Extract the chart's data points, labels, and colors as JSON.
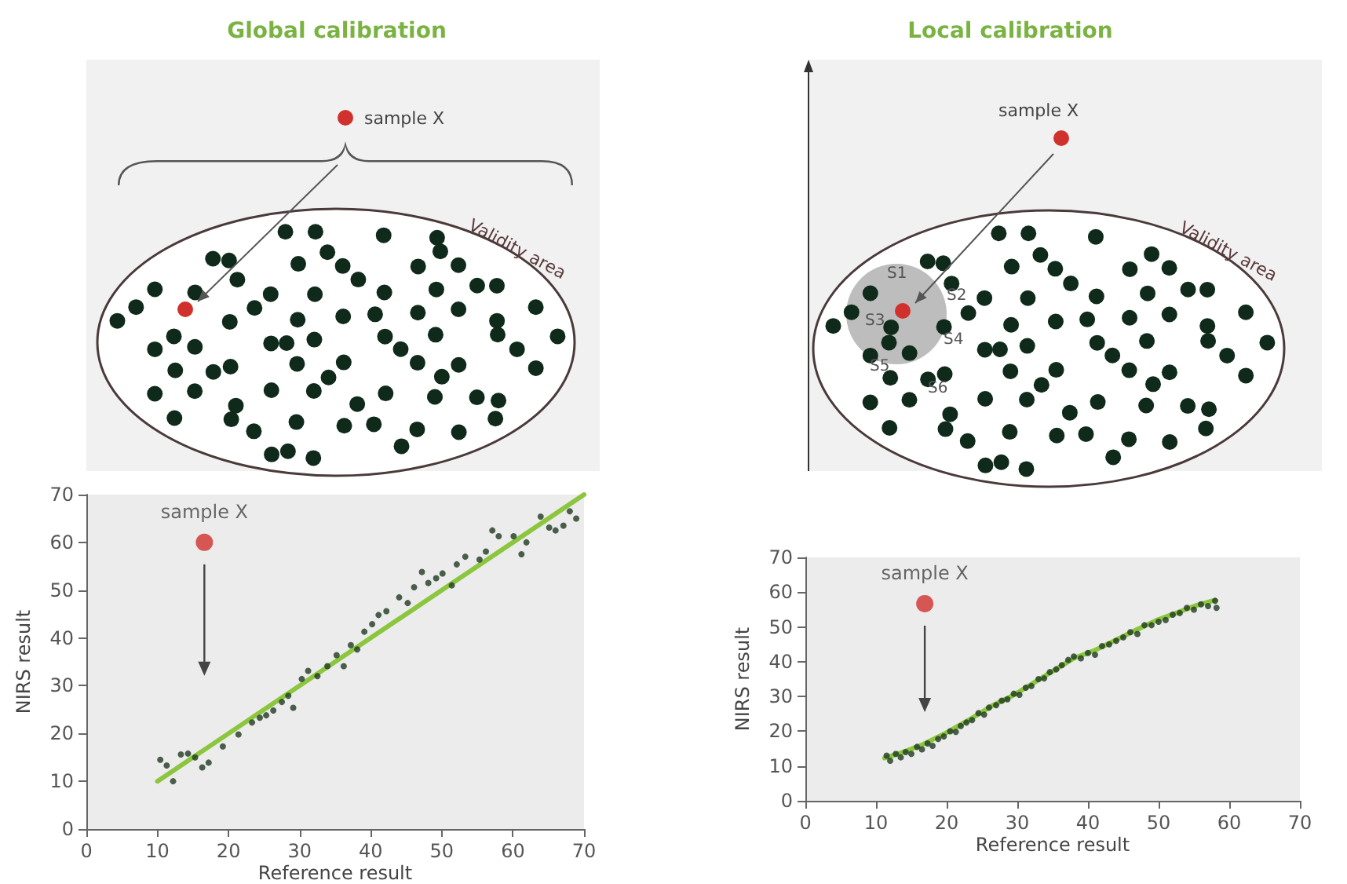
{
  "chart_data": [
    {
      "type": "scatter",
      "title": "Global calibration",
      "xlabel": "Reference result",
      "ylabel": "NIRS result",
      "annotations": [
        "sample X",
        "Validity area"
      ],
      "xlim": [
        0,
        70
      ],
      "ylim": [
        0,
        70
      ],
      "xticks": [
        0,
        10,
        20,
        30,
        40,
        50,
        60,
        70
      ],
      "yticks": [
        0,
        10,
        20,
        30,
        40,
        50,
        60,
        70
      ],
      "series": [
        {
          "marker": "circle",
          "color": "#1f3a22",
          "x": [
            10.4,
            11.3,
            12.2,
            13.3,
            14.3,
            15.3,
            16.3,
            17.2,
            19.2,
            21.4,
            23.3,
            24.4,
            25.3,
            26.3,
            27.5,
            28.4,
            29.1,
            30.3,
            31.2,
            32.5,
            33.9,
            35.2,
            36.2,
            37.2,
            38.1,
            39.1,
            40.2,
            41.1,
            42.2,
            44.0,
            45.2,
            46.1,
            47.2,
            48.1,
            49.2,
            50.1,
            51.4,
            52.1,
            53.3,
            55.3,
            56.2,
            57.1,
            58.0,
            60.1,
            61.2,
            61.9,
            63.9,
            65.1,
            66.0,
            67.1,
            68.0,
            68.9
          ],
          "values": [
            14.5,
            13.3,
            10.0,
            15.6,
            15.8,
            15.0,
            12.9,
            13.9,
            17.3,
            19.8,
            22.3,
            23.3,
            23.8,
            24.8,
            26.6,
            27.9,
            25.4,
            31.4,
            33.1,
            32.0,
            34.1,
            36.4,
            34.1,
            38.5,
            37.6,
            41.3,
            42.9,
            44.8,
            45.6,
            48.5,
            47.3,
            50.6,
            53.8,
            51.5,
            52.5,
            53.5,
            51.0,
            55.4,
            57.0,
            56.4,
            58.1,
            62.5,
            61.3,
            61.3,
            57.5,
            60.0,
            65.4,
            63.1,
            62.5,
            63.5,
            66.5,
            65.0
          ]
        },
        {
          "type": "line",
          "marker": "none",
          "color": "#8cc63f",
          "x": [
            10,
            70
          ],
          "values": [
            10,
            70
          ]
        },
        {
          "marker": "circle",
          "name": "sample X",
          "color": "#d0312d",
          "x": [
            16.6
          ],
          "values": [
            60
          ]
        }
      ]
    },
    {
      "type": "scatter",
      "title": "Local calibration",
      "xlabel": "Reference result",
      "ylabel": "NIRS result",
      "annotations": [
        "sample X",
        "Validity area",
        "S1",
        "S2",
        "S3",
        "S4",
        "S5",
        "S6"
      ],
      "xlim": [
        0,
        70
      ],
      "ylim": [
        0,
        70
      ],
      "xticks": [
        0,
        10,
        20,
        30,
        40,
        50,
        60,
        70
      ],
      "yticks": [
        0,
        10,
        20,
        30,
        40,
        50,
        60,
        70
      ],
      "series": [
        {
          "marker": "circle",
          "color": "#1f3a22",
          "x": [
            11.5,
            12,
            12.8,
            13.5,
            14.2,
            15,
            15.8,
            16.5,
            17.3,
            18,
            18.8,
            19.6,
            20.5,
            21.3,
            22,
            22.8,
            23.6,
            24.5,
            25.3,
            26,
            27,
            27.8,
            28.6,
            29.5,
            30.3,
            31.2,
            32,
            33,
            33.8,
            34.6,
            35.5,
            36.3,
            37.2,
            38,
            39,
            40,
            41,
            42,
            43,
            44,
            45,
            46,
            47,
            48,
            49,
            50,
            51,
            52,
            53,
            54,
            55,
            56,
            57,
            58,
            58.2
          ],
          "values": [
            13,
            11.5,
            13.5,
            12.5,
            14,
            13.5,
            15.5,
            14.8,
            16.5,
            15.8,
            17.8,
            18.5,
            20,
            19.8,
            21.5,
            22.5,
            23.2,
            25.2,
            24.8,
            26.8,
            27.5,
            28.8,
            29.2,
            30.8,
            30.5,
            32.5,
            33,
            35,
            35.2,
            37,
            37.8,
            39,
            40.5,
            41.5,
            41,
            42.5,
            42,
            44.5,
            45,
            46,
            47,
            48.5,
            48,
            50.5,
            50.5,
            51.5,
            52,
            53.5,
            54,
            55.5,
            55,
            56.5,
            56,
            57.5,
            55.5
          ]
        },
        {
          "type": "line",
          "marker": "none",
          "color": "#8cc63f",
          "x": [
            11.2,
            13.4,
            16.3,
            19.9,
            23.6,
            26.5,
            29.4,
            32.3,
            35.2,
            38.1,
            41.0,
            43.9,
            46.8,
            49.7,
            52.6,
            55.5,
            58.0
          ],
          "values": [
            12.3,
            13.7,
            15.9,
            19.5,
            23.8,
            27.4,
            30.3,
            33.9,
            37.5,
            41.1,
            43.3,
            46.2,
            49.1,
            51.9,
            54.1,
            56.3,
            57.7
          ]
        },
        {
          "marker": "circle",
          "name": "sample X",
          "color": "#d0312d",
          "x": [
            16.9
          ],
          "values": [
            56.7
          ]
        }
      ]
    }
  ]
}
